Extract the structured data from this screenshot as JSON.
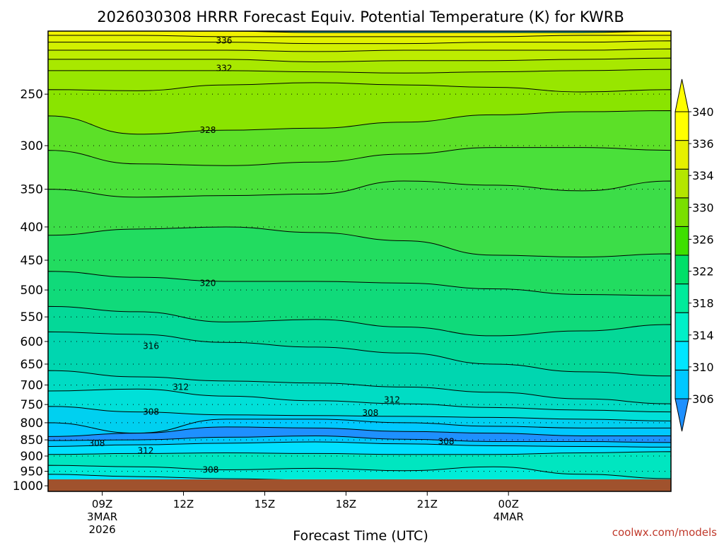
{
  "title": "2026030308 HRRR Forecast Equiv. Potential Temperature (K) for KWRB",
  "credit": "coolwx.com/models",
  "chart_data": {
    "type": "contour",
    "title": "2026030308 HRRR Forecast Equiv. Potential Temperature (K) for KWRB",
    "xlabel": "Forecast Time (UTC)",
    "x_axis": {
      "range_hours_utc_from_3mar_00z": [
        7.0,
        30.0
      ],
      "ticks": [
        {
          "hour": 9,
          "label": "09Z",
          "sub1": "3MAR",
          "sub2": "2026"
        },
        {
          "hour": 12,
          "label": "12Z"
        },
        {
          "hour": 15,
          "label": "15Z"
        },
        {
          "hour": 18,
          "label": "18Z"
        },
        {
          "hour": 21,
          "label": "21Z"
        },
        {
          "hour": 24,
          "label": "00Z",
          "sub1": "4MAR"
        }
      ]
    },
    "y_axis": {
      "scale": "log",
      "inverted": true,
      "range": [
        1020,
        200
      ],
      "ticks": [
        250,
        300,
        350,
        400,
        450,
        500,
        550,
        600,
        650,
        700,
        750,
        800,
        850,
        900,
        950,
        1000
      ]
    },
    "grid": "dotted",
    "colorbar": {
      "levels": [
        306,
        310,
        314,
        318,
        322,
        326,
        330,
        334,
        336,
        340
      ],
      "labels": [
        "306",
        "310",
        "314",
        "318",
        "322",
        "326",
        "330",
        "334",
        "336",
        "340"
      ],
      "colors": [
        "#00c8ff",
        "#00e6ff",
        "#00f0c8",
        "#00eb9b",
        "#00e068",
        "#3ee000",
        "#7ae000",
        "#b4e600",
        "#e6f000",
        "#ffff00"
      ],
      "low_color": "#1e90ff",
      "high_color": "#ffff00"
    },
    "surface_color": "#a0522d",
    "bands": [
      {
        "lo": 340,
        "hi": 999,
        "color": "#f2f200",
        "profile": [
          200,
          200,
          200,
          201,
          201,
          201,
          201,
          200
        ]
      },
      {
        "lo": 338,
        "hi": 340,
        "color": "#e2f200",
        "profile": [
          203,
          203,
          204,
          204,
          204,
          204,
          203,
          203
        ]
      },
      {
        "lo": 336,
        "hi": 338,
        "color": "#d2f000",
        "profile": [
          208,
          208,
          208,
          209,
          209,
          208,
          208,
          207
        ]
      },
      {
        "lo": 334,
        "hi": 336,
        "color": "#bdec00",
        "profile": [
          214,
          214,
          214,
          215,
          214,
          214,
          214,
          213
        ]
      },
      {
        "lo": 332,
        "hi": 334,
        "color": "#a8e800",
        "profile": [
          221,
          221,
          221,
          223,
          222,
          222,
          221,
          220
        ]
      },
      {
        "lo": 330,
        "hi": 332,
        "color": "#98e600",
        "profile": [
          230,
          230,
          230,
          231,
          232,
          231,
          230,
          229
        ]
      },
      {
        "lo": 328,
        "hi": 330,
        "color": "#8ae400",
        "profile": [
          246,
          247,
          242,
          240,
          242,
          244,
          248,
          246
        ]
      },
      {
        "lo": 326,
        "hi": 328,
        "color": "#5ce028",
        "profile": [
          270,
          288,
          284,
          282,
          276,
          269,
          266,
          265
        ]
      },
      {
        "lo": 324,
        "hi": 326,
        "color": "#4ae03a",
        "profile": [
          305,
          320,
          322,
          318,
          309,
          302,
          302,
          305
        ]
      },
      {
        "lo": 322,
        "hi": 324,
        "color": "#3cdd48",
        "profile": [
          350,
          360,
          358,
          356,
          340,
          345,
          352,
          340
        ]
      },
      {
        "lo": 320,
        "hi": 322,
        "color": "#22dc60",
        "profile": [
          412,
          403,
          400,
          408,
          420,
          442,
          445,
          440
        ]
      },
      {
        "lo": 318,
        "hi": 320,
        "color": "#10da7a",
        "profile": [
          468,
          478,
          485,
          485,
          488,
          498,
          508,
          510
        ]
      },
      {
        "lo": 316,
        "hi": 318,
        "color": "#04d898",
        "profile": [
          530,
          540,
          560,
          555,
          570,
          588,
          578,
          565
        ]
      },
      {
        "lo": 314,
        "hi": 316,
        "color": "#00d6b0",
        "profile": [
          580,
          585,
          602,
          612,
          625,
          650,
          668,
          678
        ]
      },
      {
        "lo": 312,
        "hi": 314,
        "color": "#00dcc4",
        "profile": [
          665,
          680,
          690,
          695,
          705,
          718,
          735,
          748
        ]
      },
      {
        "lo": 310,
        "hi": 312,
        "color": "#00e0d8",
        "profile": [
          715,
          710,
          728,
          740,
          748,
          758,
          765,
          770
        ]
      },
      {
        "lo": 308,
        "hi": 310,
        "color": "#00d0f0",
        "profile": [
          755,
          770,
          778,
          780,
          782,
          785,
          790,
          795
        ]
      },
      {
        "lo": 306,
        "hi": 308,
        "color": "#00c8ff",
        "profile": [
          800,
          830,
          790,
          790,
          800,
          810,
          815,
          815
        ]
      },
      {
        "lo": 304,
        "hi": 306,
        "color": "#1e90ff",
        "profile": [
          840,
          830,
          812,
          815,
          825,
          830,
          838,
          838
        ]
      },
      {
        "lo": 306,
        "hi": 308,
        "color": "#00c8ff",
        "profile": [
          852,
          850,
          842,
          838,
          848,
          855,
          855,
          858
        ]
      },
      {
        "lo": 308,
        "hi": 310,
        "color": "#00e0ff",
        "profile": [
          870,
          865,
          860,
          856,
          862,
          868,
          870,
          872
        ]
      },
      {
        "lo": 312,
        "hi": 314,
        "color": "#00e6c0",
        "profile": [
          895,
          892,
          890,
          892,
          895,
          895,
          890,
          886
        ]
      },
      {
        "lo": 310,
        "hi": 312,
        "color": "#00ecd8",
        "profile": [
          930,
          935,
          945,
          940,
          948,
          935,
          960,
          975
        ]
      },
      {
        "lo": 308,
        "hi": 310,
        "color": "#00e6ff",
        "profile": [
          960,
          968,
          975,
          980,
          1000,
          1010,
          1010,
          1010
        ]
      },
      {
        "lo": 306,
        "hi": 308,
        "color": "#1e90ff",
        "profile": [
          990,
          995,
          1010,
          1010,
          1010,
          1010,
          1010,
          1010
        ]
      }
    ],
    "contour_labels": [
      {
        "value": "336",
        "hour": 13.5,
        "pressure": 207
      },
      {
        "value": "332",
        "hour": 13.5,
        "pressure": 228
      },
      {
        "value": "328",
        "hour": 12.9,
        "pressure": 284
      },
      {
        "value": "320",
        "hour": 12.9,
        "pressure": 488
      },
      {
        "value": "316",
        "hour": 10.8,
        "pressure": 610
      },
      {
        "value": "312",
        "hour": 11.9,
        "pressure": 705
      },
      {
        "value": "312",
        "hour": 19.7,
        "pressure": 738
      },
      {
        "value": "308",
        "hour": 10.8,
        "pressure": 770
      },
      {
        "value": "308",
        "hour": 18.9,
        "pressure": 773
      },
      {
        "value": "308",
        "hour": 8.8,
        "pressure": 860
      },
      {
        "value": "312",
        "hour": 10.6,
        "pressure": 883
      },
      {
        "value": "308",
        "hour": 13.0,
        "pressure": 945
      },
      {
        "value": "308",
        "hour": 21.7,
        "pressure": 855
      }
    ]
  }
}
